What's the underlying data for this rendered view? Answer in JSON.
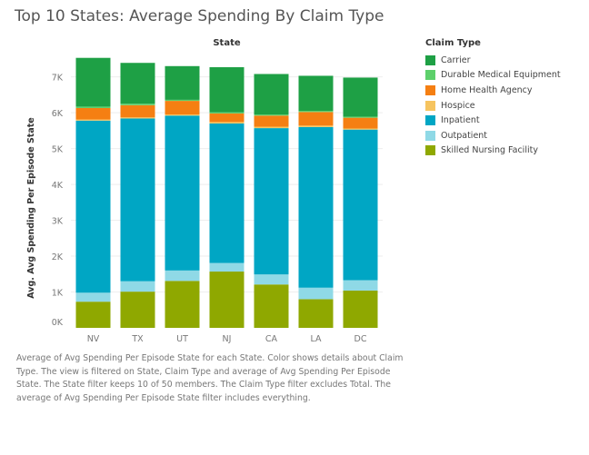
{
  "title": "Top 10 States: Average Spending By Claim Type",
  "caption": "Average of Avg Spending Per Episode State for each State.  Color shows details about Claim Type. The view is filtered on State, Claim Type and average of Avg Spending Per Episode State. The State filter keeps 10 of 50 members. The Claim Type filter excludes Total. The average of Avg Spending Per Episode State filter includes everything.",
  "chart_data": {
    "type": "bar",
    "stacked": true,
    "xlabel": "State",
    "ylabel": "Avg. Avg Spending Per Episode State",
    "ylim": [
      0,
      7700
    ],
    "yticks": [
      0,
      1000,
      2000,
      3000,
      4000,
      5000,
      6000,
      7000
    ],
    "ytick_labels": [
      "0K",
      "1K",
      "2K",
      "3K",
      "4K",
      "5K",
      "6K",
      "7K"
    ],
    "grid": true,
    "legend_title": "Claim Type",
    "legend_position": "right",
    "categories": [
      "NV",
      "TX",
      "UT",
      "NJ",
      "CA",
      "LA",
      "DC"
    ],
    "series": [
      {
        "name": "Skilled Nursing Facility",
        "color": "#8fa800",
        "values": [
          730,
          1010,
          1310,
          1570,
          1210,
          800,
          1040
        ]
      },
      {
        "name": "Outpatient",
        "color": "#8fd9e6",
        "values": [
          250,
          290,
          290,
          240,
          280,
          320,
          290
        ]
      },
      {
        "name": "Inpatient",
        "color": "#00a6c4",
        "values": [
          4800,
          4540,
          4320,
          3890,
          4080,
          4480,
          4200
        ]
      },
      {
        "name": "Hospice",
        "color": "#f6c45f",
        "values": [
          30,
          30,
          30,
          40,
          40,
          40,
          30
        ]
      },
      {
        "name": "Home Health Agency",
        "color": "#f57f12",
        "values": [
          320,
          340,
          380,
          240,
          310,
          380,
          300
        ]
      },
      {
        "name": "Durable Medical Equipment",
        "color": "#5dd06b",
        "values": [
          40,
          40,
          30,
          30,
          30,
          30,
          30
        ]
      },
      {
        "name": "Carrier",
        "color": "#1ea045",
        "values": [
          1360,
          1140,
          940,
          1260,
          1130,
          980,
          1090
        ]
      }
    ]
  }
}
